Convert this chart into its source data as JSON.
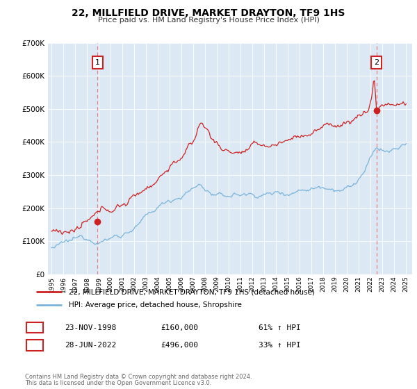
{
  "title": "22, MILLFIELD DRIVE, MARKET DRAYTON, TF9 1HS",
  "subtitle": "Price paid vs. HM Land Registry's House Price Index (HPI)",
  "bg_color": "#dce9f5",
  "hpi_color": "#7ab3d9",
  "price_color": "#cc2222",
  "marker_color": "#cc2222",
  "dashed_line_color": "#e08080",
  "ylim": [
    0,
    700000
  ],
  "xlim_start": 1994.7,
  "xlim_end": 2025.5,
  "yticks": [
    0,
    100000,
    200000,
    300000,
    400000,
    500000,
    600000,
    700000
  ],
  "ytick_labels": [
    "£0",
    "£100K",
    "£200K",
    "£300K",
    "£400K",
    "£500K",
    "£600K",
    "£700K"
  ],
  "xticks": [
    1995,
    1996,
    1997,
    1998,
    1999,
    2000,
    2001,
    2002,
    2003,
    2004,
    2005,
    2006,
    2007,
    2008,
    2009,
    2010,
    2011,
    2012,
    2013,
    2014,
    2015,
    2016,
    2017,
    2018,
    2019,
    2020,
    2021,
    2022,
    2023,
    2024,
    2025
  ],
  "marker1_x": 1998.9,
  "marker1_y": 160000,
  "marker1_label": "1",
  "marker2_x": 2022.5,
  "marker2_y": 496000,
  "marker2_label": "2",
  "legend_line1": "22, MILLFIELD DRIVE, MARKET DRAYTON, TF9 1HS (detached house)",
  "legend_line2": "HPI: Average price, detached house, Shropshire",
  "table_row1": [
    "1",
    "23-NOV-1998",
    "£160,000",
    "61% ↑ HPI"
  ],
  "table_row2": [
    "2",
    "28-JUN-2022",
    "£496,000",
    "33% ↑ HPI"
  ],
  "footer1": "Contains HM Land Registry data © Crown copyright and database right 2024.",
  "footer2": "This data is licensed under the Open Government Licence v3.0."
}
